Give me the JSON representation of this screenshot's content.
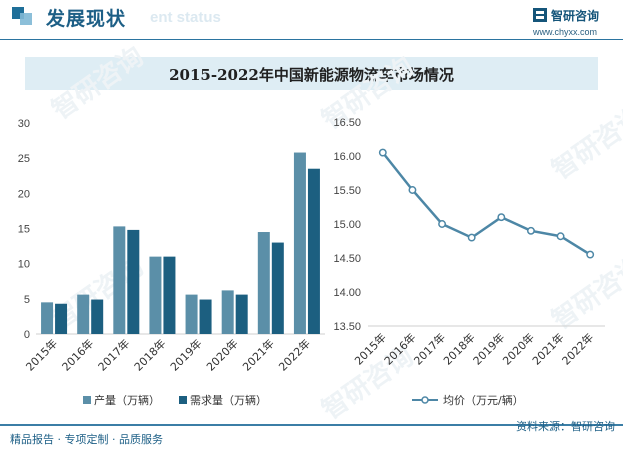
{
  "header": {
    "title": "发展现状",
    "ghost_text": "ent status",
    "brand": "智研咨询",
    "url": "www.chyxx.com"
  },
  "main_title": "2015-2022年中国新能源物流车市场情况",
  "chart_data": [
    {
      "type": "bar",
      "categories": [
        "2015年",
        "2016年",
        "2017年",
        "2018年",
        "2019年",
        "2020年",
        "2021年",
        "2022年"
      ],
      "series": [
        {
          "name": "产量（万辆）",
          "color": "#5b8fa8",
          "values": [
            4.5,
            5.6,
            15.3,
            11.0,
            5.6,
            6.2,
            14.5,
            25.8
          ]
        },
        {
          "name": "需求量（万辆）",
          "color": "#1c5f80",
          "values": [
            4.3,
            4.9,
            14.8,
            11.0,
            4.9,
            5.6,
            13.0,
            23.5
          ]
        }
      ],
      "ylim": [
        0,
        30
      ],
      "yticks": [
        "0",
        "5",
        "10",
        "15",
        "20",
        "25",
        "30"
      ],
      "grid": false,
      "legend": "bottom"
    },
    {
      "type": "line",
      "categories": [
        "2015年",
        "2016年",
        "2017年",
        "2018年",
        "2019年",
        "2020年",
        "2021年",
        "2022年"
      ],
      "series": [
        {
          "name": "均价（万元/辆）",
          "color": "#4d87a6",
          "values": [
            16.05,
            15.5,
            15.0,
            14.8,
            15.1,
            14.9,
            14.82,
            14.55
          ]
        }
      ],
      "ylim": [
        13.5,
        16.5
      ],
      "yticks": [
        "13.50",
        "14.00",
        "14.50",
        "15.00",
        "15.50",
        "16.00",
        "16.50"
      ],
      "grid": false,
      "legend": "bottom"
    }
  ],
  "footer": {
    "left": "精品报告 · 专项定制 · 品质服务",
    "right": "资料来源：智研咨询"
  },
  "watermark": "智研咨询"
}
